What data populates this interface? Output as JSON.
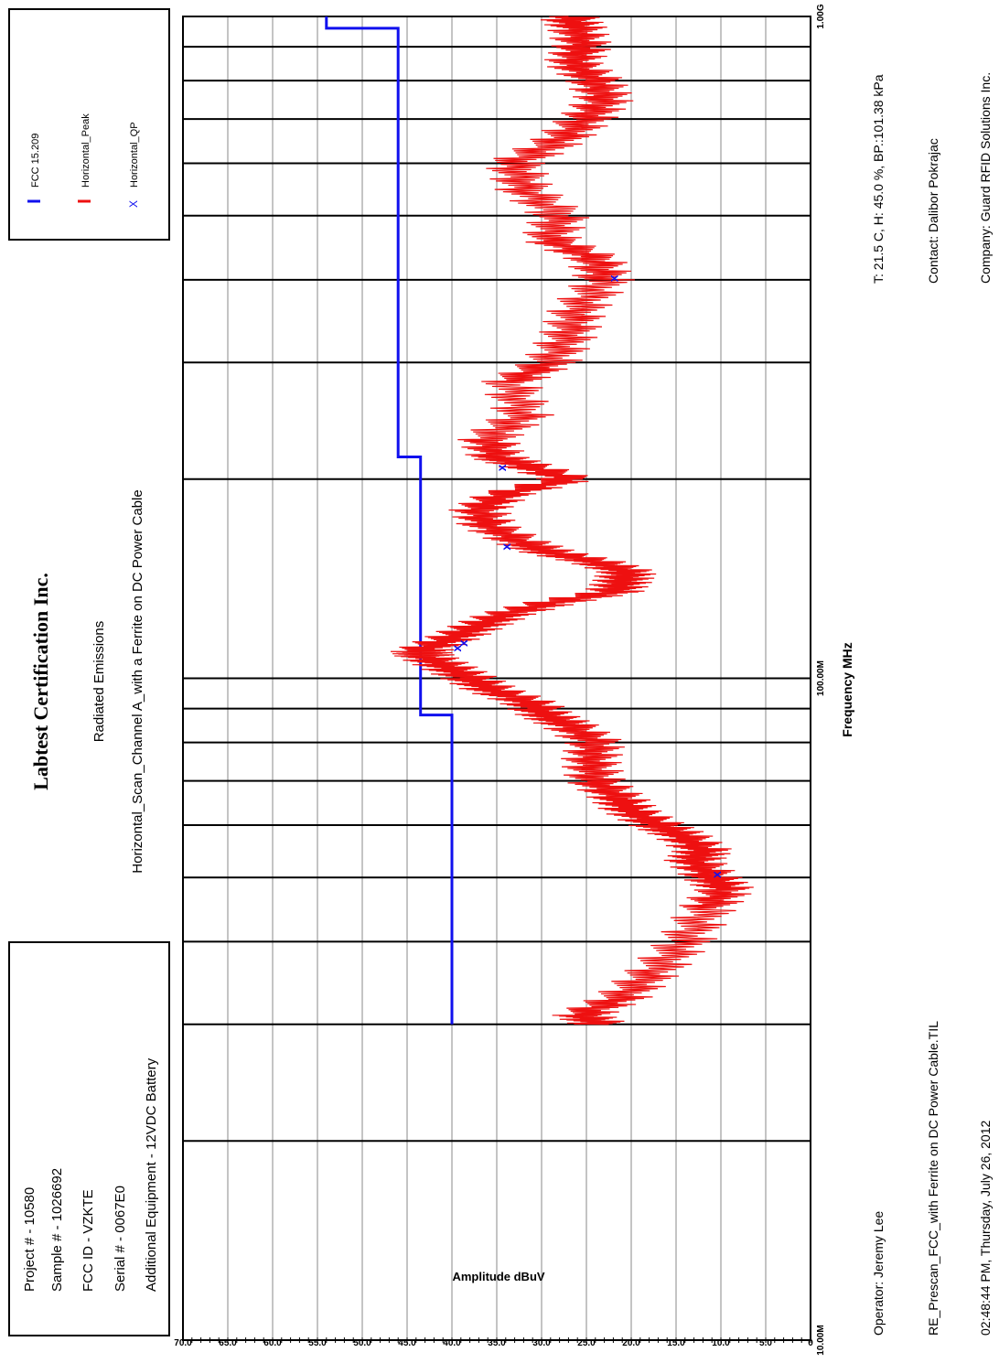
{
  "header": {
    "company": "Labtest Certification Inc.",
    "test": "Radiated Emissions",
    "scan": "Horizontal_Scan_Channel A_with a Ferrite on DC Power Cable"
  },
  "info_box": [
    "Project # - 10580",
    "Sample # - 1026692",
    "FCC ID - VZKTE",
    "Serial # - 0067E0",
    "Additional Equipment - 12VDC Battery"
  ],
  "legend": [
    {
      "name": "FCC 15.209",
      "marker": "line",
      "color": "#1010ee"
    },
    {
      "name": "Horizontal_Peak",
      "marker": "line",
      "color": "#ee1010"
    },
    {
      "name": "Horizontal_QP",
      "marker": "x",
      "color": "#1010ee"
    }
  ],
  "footer": {
    "conditions": "T: 21.5 C, H: 45.0 %, BP.:101.38 kPa",
    "contact": "Contact: Dalibor Pokrajac",
    "company": "Company: Guard RFID Solutions Inc.",
    "operator": "Operator: Jeremy Lee",
    "file": "RE_Prescan_FCC_with Ferrite on DC Power Cable.TIL",
    "timestamp": "02:48:44 PM, Thursday, July 26, 2012"
  },
  "chart_data": {
    "type": "line",
    "xlabel": "Frequency MHz",
    "ylabel": "Amplitude dBuV",
    "x_scale": "log",
    "xlim": [
      10,
      1000
    ],
    "ylim": [
      0,
      70
    ],
    "x_tick_labels": [
      {
        "value": 10,
        "label": "10.00M"
      },
      {
        "value": 100,
        "label": "100.00M"
      },
      {
        "value": 1000,
        "label": "1.00G"
      }
    ],
    "y_ticks": [
      0,
      5,
      10,
      15,
      20,
      25,
      30,
      35,
      40,
      45,
      50,
      55,
      60,
      65,
      70
    ],
    "y_tick_labels": [
      "0",
      "5.0",
      "10.0",
      "15.0",
      "20.0",
      "25.0",
      "30.0",
      "35.0",
      "40.0",
      "45.0",
      "50.0",
      "55.0",
      "60.0",
      "65.0",
      "70.0"
    ],
    "grid": true,
    "series": [
      {
        "name": "FCC 15.209",
        "color": "#1010ee",
        "style": "step",
        "x": [
          30,
          88,
          88,
          216,
          216,
          960,
          960,
          1000
        ],
        "y": [
          40,
          40,
          43.5,
          43.5,
          46,
          46,
          54,
          54
        ]
      },
      {
        "name": "Horizontal_Peak",
        "color": "#ee1010",
        "style": "line",
        "x": [
          30,
          31,
          33,
          36,
          40,
          45,
          48,
          50,
          53,
          55,
          58,
          60,
          63,
          66,
          70,
          75,
          80,
          85,
          88,
          92,
          96,
          100,
          104,
          108,
          110,
          115,
          120,
          125,
          130,
          135,
          140,
          145,
          150,
          155,
          160,
          170,
          180,
          190,
          200,
          210,
          216,
          230,
          250,
          280,
          300,
          330,
          360,
          400,
          430,
          460,
          500,
          550,
          600,
          650,
          700,
          750,
          800,
          850,
          900,
          960,
          1000
        ],
        "y": [
          23.5,
          25.5,
          21,
          17.5,
          14,
          11.5,
          9.5,
          11,
          13,
          12,
          14.5,
          17,
          20,
          21.5,
          24,
          24.5,
          24,
          27,
          29.5,
          31.5,
          35.5,
          38,
          40.5,
          43,
          43.5,
          40,
          37,
          34,
          29,
          22,
          21,
          20.5,
          24,
          29,
          32,
          36,
          37,
          34,
          27,
          32,
          35,
          36,
          32,
          33.5,
          29,
          27,
          26,
          23,
          24,
          29,
          28,
          32,
          33,
          28,
          25,
          23,
          24,
          26.5,
          25.5,
          26,
          27
        ]
      },
      {
        "name": "Horizontal_QP",
        "color": "#1010ee",
        "style": "marker",
        "x": [
          50.5,
          111,
          113,
          158,
          208,
          402
        ],
        "y": [
          10.5,
          39.5,
          38.8,
          34,
          34.5,
          22
        ]
      }
    ]
  }
}
